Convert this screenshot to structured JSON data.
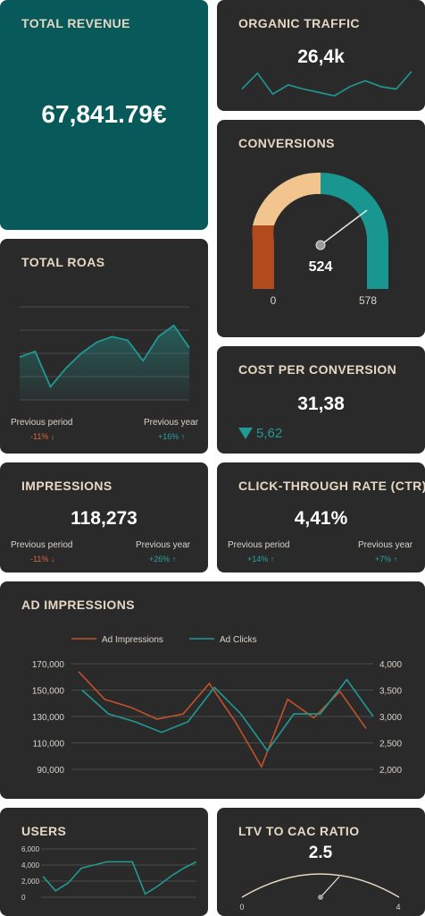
{
  "total_revenue": {
    "title": "TOTAL REVENUE",
    "value": "67,841.79€"
  },
  "organic_traffic": {
    "title": "ORGANIC TRAFFIC",
    "value": "26,4k"
  },
  "conversions": {
    "title": "CONVERSIONS",
    "value": "524",
    "min": "0",
    "max": "578",
    "gauge_fraction": 0.906
  },
  "total_roas": {
    "title": "TOTAL ROAS",
    "prev_period_label": "Previous period",
    "prev_period_value": "-11% ↓",
    "prev_year_label": "Previous year",
    "prev_year_value": "+16% ↑"
  },
  "cost_per_conversion": {
    "title": "COST PER CONVERSION",
    "value": "31,38",
    "delta": "5,62",
    "delta_icon": "triangle-down-icon"
  },
  "impressions": {
    "title": "IMPRESSIONS",
    "value": "118,273",
    "prev_period_label": "Previous period",
    "prev_period_value": "-11% ↓",
    "prev_year_label": "Previous year",
    "prev_year_value": "+26% ↑"
  },
  "ctr": {
    "title": "CLICK-THROUGH RATE (CTR)",
    "value": "4,41%",
    "prev_period_label": "Previous period",
    "prev_period_value": "+14% ↑",
    "prev_year_label": "Previous year",
    "prev_year_value": "+7% ↑"
  },
  "ad_impressions": {
    "title": "AD IMPRESSIONS",
    "legend": [
      "Ad Impressions",
      "Ad Clicks"
    ]
  },
  "users": {
    "title": "USERS"
  },
  "ltv_cac": {
    "title": "LTV TO CAC RATIO",
    "value": "2.5",
    "min": "0",
    "max": "4"
  },
  "colors": {
    "teal": "#1f9a94",
    "orange": "#c0522a",
    "sand": "#f3c58e",
    "card": "#2b2a2a",
    "accent_title": "#e6d7c3"
  },
  "chart_data": [
    {
      "type": "line",
      "name": "organic_traffic_sparkline",
      "values": [
        9,
        28,
        3,
        14,
        9,
        5,
        1,
        12,
        19,
        12,
        9,
        30
      ],
      "ylim": [
        0,
        32
      ]
    },
    {
      "type": "area",
      "name": "total_roas_chart",
      "values": [
        46,
        52,
        14,
        34,
        50,
        62,
        68,
        64,
        42,
        68,
        80,
        56
      ],
      "ylim": [
        0,
        100
      ]
    },
    {
      "type": "line",
      "name": "ad_impressions_chart",
      "y_ticks_left": [
        "170,000",
        "150,000",
        "130,000",
        "110,000",
        "90,000"
      ],
      "y_ticks_right": [
        "4,000",
        "3,500",
        "3,000",
        "2,500",
        "2,000"
      ],
      "ylim_left": [
        90000,
        170000
      ],
      "ylim_right": [
        2000,
        4000
      ],
      "series": [
        {
          "name": "Ad Impressions",
          "axis": "left",
          "values": [
            164000,
            143000,
            137000,
            128000,
            132000,
            155000,
            126000,
            92000,
            143000,
            129000,
            149000,
            121000
          ]
        },
        {
          "name": "Ad Clicks",
          "axis": "right",
          "values": [
            3500,
            3050,
            2900,
            2700,
            2900,
            3550,
            3050,
            2350,
            3050,
            3050,
            3700,
            3000
          ]
        }
      ]
    },
    {
      "type": "line",
      "name": "users_chart",
      "y_ticks": [
        "6,000",
        "4,000",
        "2,000",
        "0"
      ],
      "ylim": [
        0,
        6000
      ],
      "values": [
        2600,
        800,
        1800,
        3600,
        4000,
        4400,
        4400,
        4400,
        400,
        1400,
        2600,
        3600,
        4400
      ]
    }
  ]
}
